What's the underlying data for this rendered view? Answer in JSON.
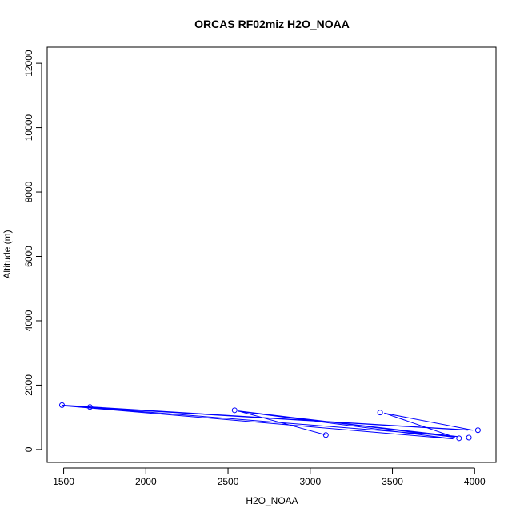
{
  "chart_data": {
    "type": "line",
    "title": "ORCAS RF02miz H2O_NOAA",
    "xlabel": "H2O_NOAA",
    "ylabel": "Altitude (m)",
    "xlim": [
      1400,
      4130
    ],
    "ylim": [
      -400,
      12500
    ],
    "x_ticks": [
      1500,
      2000,
      2500,
      3000,
      3500,
      4000
    ],
    "y_ticks": [
      0,
      2000,
      4000,
      6000,
      8000,
      10000,
      12000
    ],
    "grid": false,
    "legend": "none",
    "series_color": "#0000ff",
    "series": [
      {
        "x": [
          3090,
          2560,
          3880,
          3450,
          3990,
          1500,
          3870,
          2560,
          3900,
          1650,
          3960,
          1490
        ],
        "y": [
          460,
          1200,
          380,
          1130,
          600,
          1360,
          330,
          1190,
          400,
          1310,
          600,
          1380
        ]
      }
    ],
    "markers": [
      {
        "x": 1490,
        "y": 1380
      },
      {
        "x": 1660,
        "y": 1320
      },
      {
        "x": 2540,
        "y": 1220
      },
      {
        "x": 3095,
        "y": 450
      },
      {
        "x": 3425,
        "y": 1150
      },
      {
        "x": 3905,
        "y": 350
      },
      {
        "x": 3965,
        "y": 370
      },
      {
        "x": 4020,
        "y": 600
      }
    ]
  }
}
